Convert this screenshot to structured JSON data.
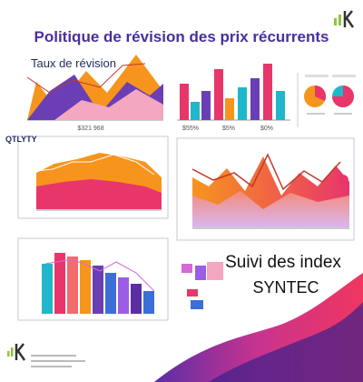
{
  "header": {
    "title": "Politique de révision des prix récurrents"
  },
  "panels": {
    "top_left": {
      "title": "Taux de révision",
      "caption": "$321 968"
    },
    "top_right": {
      "labels": [
        "$55%",
        "$5%",
        "$0%"
      ]
    },
    "middle_left": {
      "title": "QTLYTY"
    },
    "bottom_right": {
      "title": "Suivi des index",
      "subtitle": "SYNTEC"
    }
  }
}
